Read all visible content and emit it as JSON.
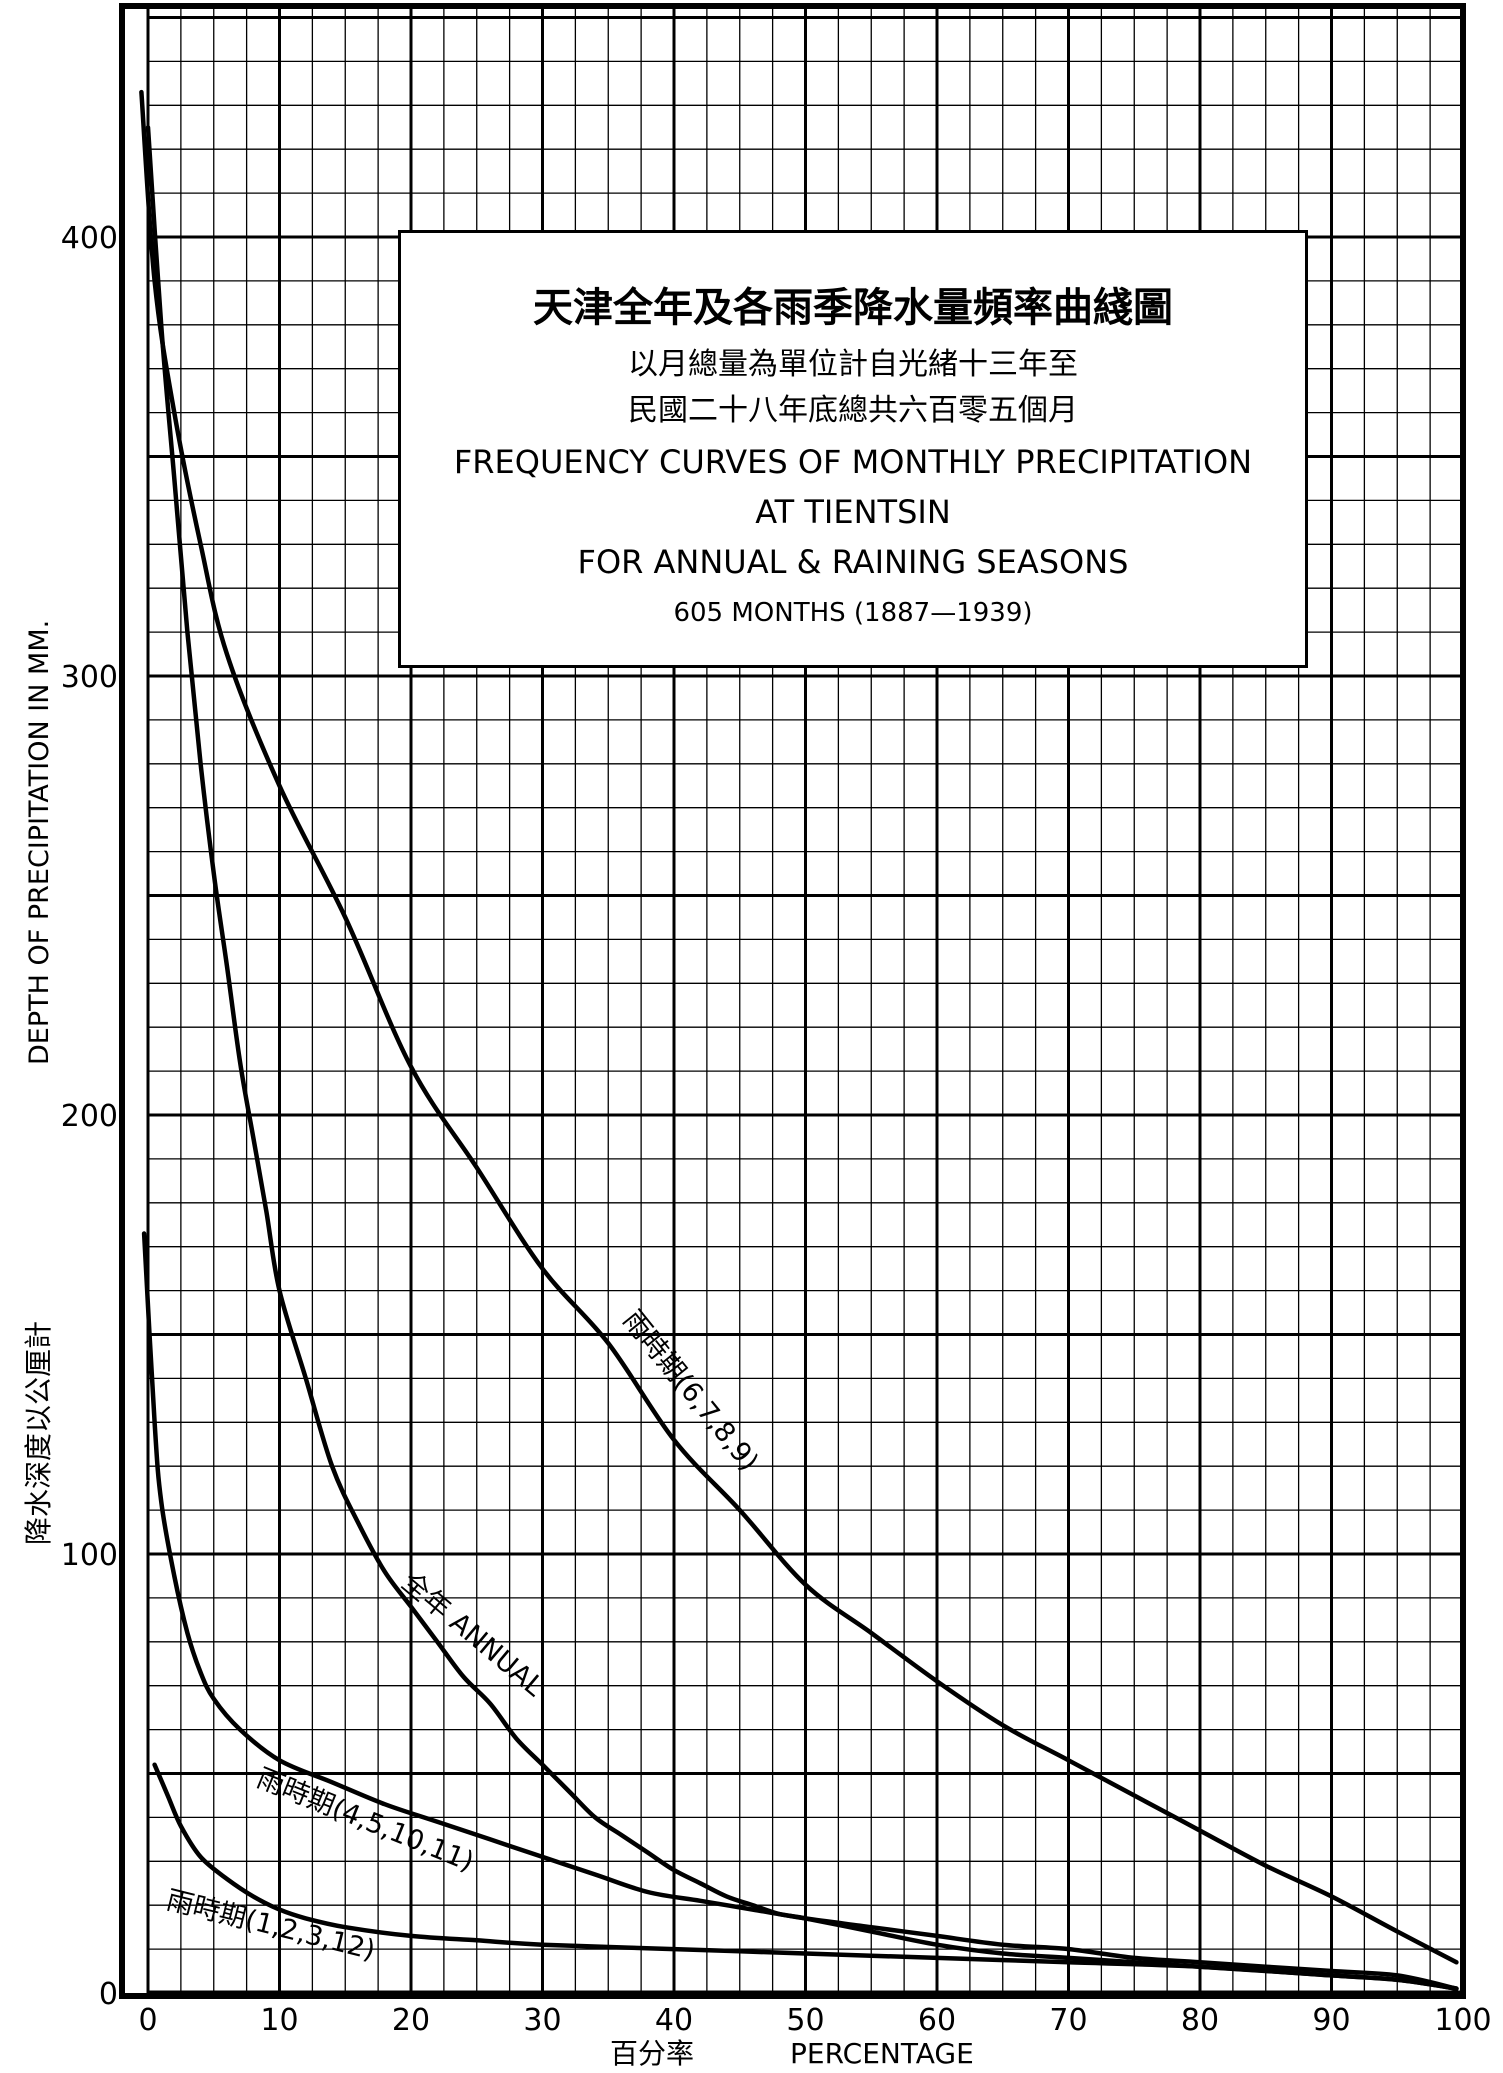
{
  "chart_data": {
    "type": "line",
    "title_zh": "天津全年及各雨季降水量頻率曲綫圖",
    "subtitle_zh_1": "以月總量為單位計自光緒十三年至",
    "subtitle_zh_2": "民國二十八年底總共六百零五個月",
    "title_en_1": "FREQUENCY CURVES OF MONTHLY PRECIPITATION",
    "title_en_2": "AT TIENTSIN",
    "title_en_3": "FOR ANNUAL & RAINING SEASONS",
    "title_en_4": "605 MONTHS (1887—1939)",
    "ylabel_en": "DEPTH OF PRECIPITATION IN MM.",
    "ylabel_zh": "降水深度以公厘計",
    "xlabel_zh": "百分率",
    "xlabel_en": "PERCENTAGE",
    "xlim": [
      0,
      100
    ],
    "ylim": [
      0,
      450
    ],
    "xticks": [
      "0",
      "10",
      "20",
      "30",
      "40",
      "50",
      "60",
      "70",
      "80",
      "90",
      "100"
    ],
    "yticks": [
      "0",
      "100",
      "200",
      "300",
      "400"
    ],
    "grid": true,
    "series": [
      {
        "name": "雨時期(6,7,8,9)",
        "label_text": "雨時期(6,7,8,9)",
        "points": [
          [
            -0.5,
            433
          ],
          [
            0.5,
            390
          ],
          [
            2,
            360
          ],
          [
            4,
            330
          ],
          [
            6,
            305
          ],
          [
            10,
            275
          ],
          [
            15,
            245
          ],
          [
            20,
            211
          ],
          [
            25,
            188
          ],
          [
            30,
            165
          ],
          [
            35,
            148
          ],
          [
            40,
            126
          ],
          [
            45,
            110
          ],
          [
            50,
            93
          ],
          [
            55,
            82
          ],
          [
            60,
            71
          ],
          [
            65,
            61
          ],
          [
            70,
            53
          ],
          [
            75,
            45
          ],
          [
            80,
            37
          ],
          [
            85,
            29
          ],
          [
            90,
            22
          ],
          [
            95,
            14
          ],
          [
            99.5,
            7
          ]
        ]
      },
      {
        "name": "全年 ANNUAL",
        "label_text": "全年 ANNUAL",
        "points": [
          [
            0,
            425
          ],
          [
            1,
            380
          ],
          [
            2,
            345
          ],
          [
            3,
            310
          ],
          [
            4,
            280
          ],
          [
            5,
            255
          ],
          [
            6,
            234
          ],
          [
            7,
            212
          ],
          [
            8,
            195
          ],
          [
            9,
            178
          ],
          [
            10,
            160
          ],
          [
            12,
            140
          ],
          [
            14,
            120
          ],
          [
            16,
            107
          ],
          [
            18,
            96
          ],
          [
            20,
            88
          ],
          [
            22,
            80
          ],
          [
            24,
            72
          ],
          [
            26,
            66
          ],
          [
            28,
            58
          ],
          [
            30,
            52
          ],
          [
            32,
            46
          ],
          [
            34,
            40
          ],
          [
            36,
            36
          ],
          [
            38,
            32
          ],
          [
            40,
            28
          ],
          [
            42,
            25
          ],
          [
            44,
            22
          ],
          [
            46,
            20
          ],
          [
            48,
            18
          ],
          [
            50,
            17
          ],
          [
            55,
            14
          ],
          [
            60,
            11
          ],
          [
            65,
            9
          ],
          [
            70,
            8
          ],
          [
            75,
            7
          ],
          [
            80,
            6
          ],
          [
            85,
            5
          ],
          [
            90,
            4
          ],
          [
            95,
            3
          ],
          [
            99.5,
            1
          ]
        ]
      },
      {
        "name": "雨時期(4,5,10,11)",
        "label_text": "雨時期(4,5,10,11)",
        "points": [
          [
            -0.3,
            173
          ],
          [
            0.5,
            130
          ],
          [
            1,
            112
          ],
          [
            2,
            95
          ],
          [
            3,
            82
          ],
          [
            4,
            73
          ],
          [
            5,
            67
          ],
          [
            7,
            60
          ],
          [
            10,
            53
          ],
          [
            14,
            48
          ],
          [
            18,
            43
          ],
          [
            22,
            39
          ],
          [
            26,
            35
          ],
          [
            30,
            31
          ],
          [
            34,
            27
          ],
          [
            38,
            23
          ],
          [
            42,
            21
          ],
          [
            46,
            19
          ],
          [
            50,
            17
          ],
          [
            55,
            15
          ],
          [
            60,
            13
          ],
          [
            65,
            11
          ],
          [
            70,
            10
          ],
          [
            75,
            8
          ],
          [
            80,
            7
          ],
          [
            85,
            6
          ],
          [
            90,
            5
          ],
          [
            95,
            4
          ],
          [
            99.5,
            1
          ]
        ]
      },
      {
        "name": "雨時期(1,2,3,12)",
        "label_text": "雨時期(1,2,3,12)",
        "points": [
          [
            0.5,
            52
          ],
          [
            1.5,
            45
          ],
          [
            2.5,
            38
          ],
          [
            4,
            31
          ],
          [
            6,
            26
          ],
          [
            8,
            22
          ],
          [
            10,
            19
          ],
          [
            12,
            17
          ],
          [
            15,
            15
          ],
          [
            20,
            13
          ],
          [
            25,
            12
          ],
          [
            30,
            11
          ],
          [
            40,
            10
          ],
          [
            50,
            9
          ],
          [
            60,
            8
          ],
          [
            70,
            7
          ],
          [
            80,
            6
          ],
          [
            90,
            4
          ],
          [
            95,
            3
          ],
          [
            99.5,
            1
          ]
        ]
      }
    ]
  }
}
